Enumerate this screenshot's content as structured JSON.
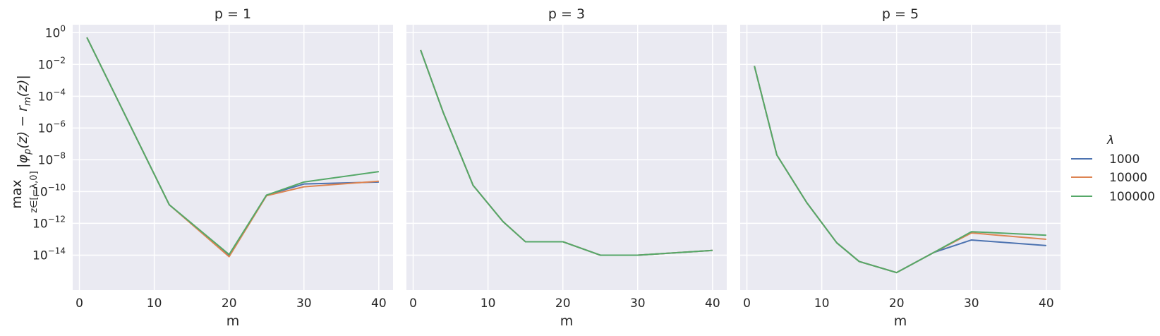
{
  "figure": {
    "ylabel_main": "|φ",
    "ylabel_sub_p": "p",
    "ylabel_mid": "(z) − r",
    "ylabel_sub_m": "m",
    "ylabel_end": "(z)|",
    "ylabel_max": "max",
    "ylabel_max_sub": "z∈[−λ,0]"
  },
  "legend": {
    "title": "λ",
    "entries": [
      "1000",
      "10000",
      "100000"
    ],
    "colors": [
      "#4c72b0",
      "#dd8452",
      "#55a868"
    ]
  },
  "style": {
    "panel_bg": "#eaeaf2",
    "grid": "#ffffff"
  },
  "chart_data": [
    {
      "type": "line",
      "title": "p = 1",
      "xlabel": "m",
      "y_scale": "log",
      "xlim": [
        -0.9,
        41.9
      ],
      "ylim_log10": [
        -16.2,
        0.5
      ],
      "xticks": [
        0,
        10,
        20,
        30,
        40
      ],
      "xtick_labels": [
        "0",
        "10",
        "20",
        "30",
        "40"
      ],
      "yticks_log10": [
        0,
        -2,
        -4,
        -6,
        -8,
        -10,
        -12,
        -14
      ],
      "ytick_labels": [
        "0",
        "−2",
        "−4",
        "−6",
        "−8",
        "−10",
        "−12",
        "−14"
      ],
      "series": [
        {
          "name": "1000",
          "x": [
            1,
            12,
            20,
            25,
            30,
            40
          ],
          "y": [
            0.5,
            1.5e-11,
            9e-15,
            6e-11,
            3e-10,
            4e-10
          ]
        },
        {
          "name": "10000",
          "x": [
            1,
            12,
            20,
            25,
            30,
            40
          ],
          "y": [
            0.5,
            1.5e-11,
            8e-15,
            5.5e-11,
            2e-10,
            4.5e-10
          ]
        },
        {
          "name": "100000",
          "x": [
            1,
            12,
            20,
            25,
            30,
            40
          ],
          "y": [
            0.5,
            1.5e-11,
            1.1e-14,
            6e-11,
            4e-10,
            1.8e-09
          ]
        }
      ]
    },
    {
      "type": "line",
      "title": "p = 3",
      "xlabel": "m",
      "y_scale": "log",
      "xlim": [
        -0.9,
        41.9
      ],
      "ylim_log10": [
        -16.2,
        0.5
      ],
      "xticks": [
        0,
        10,
        20,
        30,
        40
      ],
      "xtick_labels": [
        "0",
        "10",
        "20",
        "30",
        "40"
      ],
      "yticks_log10": [
        0,
        -2,
        -4,
        -6,
        -8,
        -10,
        -12,
        -14
      ],
      "ytick_labels": [
        "0",
        "−2",
        "−4",
        "−6",
        "−8",
        "−10",
        "−12",
        "−14"
      ],
      "series": [
        {
          "name": "1000",
          "x": [
            1,
            4,
            8,
            12,
            15,
            20,
            25,
            30,
            40
          ],
          "y": [
            0.08,
            1e-05,
            2.5e-10,
            1.3e-12,
            7e-14,
            7e-14,
            1e-14,
            1e-14,
            2e-14
          ]
        },
        {
          "name": "10000",
          "x": [
            1,
            4,
            8,
            12,
            15,
            20,
            25,
            30,
            40
          ],
          "y": [
            0.08,
            1e-05,
            2.5e-10,
            1.3e-12,
            7e-14,
            7e-14,
            1e-14,
            1e-14,
            2e-14
          ]
        },
        {
          "name": "100000",
          "x": [
            1,
            4,
            8,
            12,
            15,
            20,
            25,
            30,
            40
          ],
          "y": [
            0.08,
            1e-05,
            2.5e-10,
            1.3e-12,
            7e-14,
            7e-14,
            1e-14,
            1e-14,
            2e-14
          ]
        }
      ]
    },
    {
      "type": "line",
      "title": "p = 5",
      "xlabel": "m",
      "y_scale": "log",
      "xlim": [
        -0.9,
        41.9
      ],
      "ylim_log10": [
        -16.2,
        0.5
      ],
      "xticks": [
        0,
        10,
        20,
        30,
        40
      ],
      "xtick_labels": [
        "0",
        "10",
        "20",
        "30",
        "40"
      ],
      "yticks_log10": [
        0,
        -2,
        -4,
        -6,
        -8,
        -10,
        -12,
        -14
      ],
      "ytick_labels": [
        "0",
        "−2",
        "−4",
        "−6",
        "−8",
        "−10",
        "−12",
        "−14"
      ],
      "series": [
        {
          "name": "1000",
          "x": [
            1,
            4,
            8,
            12,
            15,
            20,
            25,
            30,
            40
          ],
          "y": [
            0.008,
            2e-08,
            2e-11,
            6e-14,
            4e-15,
            8e-16,
            1.5e-14,
            9e-14,
            4e-14
          ]
        },
        {
          "name": "10000",
          "x": [
            1,
            4,
            8,
            12,
            15,
            20,
            25,
            30,
            40
          ],
          "y": [
            0.008,
            2e-08,
            2e-11,
            6e-14,
            4e-15,
            8e-16,
            1.5e-14,
            2.5e-13,
            1e-13
          ]
        },
        {
          "name": "100000",
          "x": [
            1,
            4,
            8,
            12,
            15,
            20,
            25,
            30,
            40
          ],
          "y": [
            0.008,
            2e-08,
            2e-11,
            6e-14,
            4e-15,
            8e-16,
            1.5e-14,
            3e-13,
            1.8e-13
          ]
        }
      ]
    }
  ]
}
